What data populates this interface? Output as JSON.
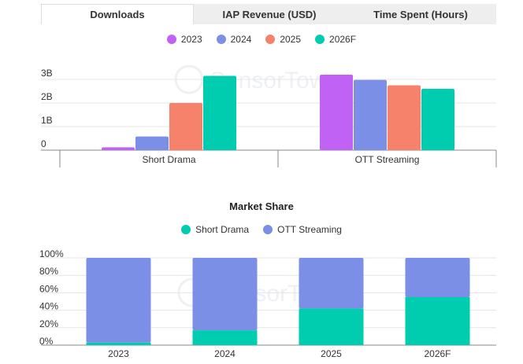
{
  "tabs": [
    {
      "label": "Downloads",
      "active": true
    },
    {
      "label": "IAP Revenue (USD)",
      "active": false
    },
    {
      "label": "Time Spent (Hours)",
      "active": false
    }
  ],
  "watermark": "SensorTower",
  "colors": {
    "2023": "#c063f5",
    "2024": "#7b8fe6",
    "2025": "#f6826c",
    "2026F": "#00cdb0",
    "short_drama": "#00cdb0",
    "ott_streaming": "#7b8fe6"
  },
  "chart_data": [
    {
      "type": "bar",
      "categories": [
        "Short Drama",
        "OTT Streaming"
      ],
      "series": [
        {
          "name": "2023",
          "values": [
            0.12,
            3.2
          ]
        },
        {
          "name": "2024",
          "values": [
            0.58,
            2.98
          ]
        },
        {
          "name": "2025",
          "values": [
            2.0,
            2.75
          ]
        },
        {
          "name": "2026F",
          "values": [
            3.15,
            2.6
          ]
        }
      ],
      "yticks": [
        {
          "value": 0,
          "label": "0"
        },
        {
          "value": 1,
          "label": "1B"
        },
        {
          "value": 2,
          "label": "2B"
        },
        {
          "value": 3,
          "label": "3B"
        }
      ],
      "ylim": [
        0,
        3.5
      ],
      "legend": "top-center",
      "grid": true
    },
    {
      "type": "bar",
      "stacked": true,
      "title": "Market Share",
      "categories": [
        "2023",
        "2024",
        "2025",
        "2026F"
      ],
      "series": [
        {
          "name": "Short Drama",
          "values": [
            3,
            17,
            42,
            55
          ]
        },
        {
          "name": "OTT Streaming",
          "values": [
            97,
            83,
            58,
            45
          ]
        }
      ],
      "yticks": [
        {
          "value": 0,
          "label": "0%"
        },
        {
          "value": 20,
          "label": "20%"
        },
        {
          "value": 40,
          "label": "40%"
        },
        {
          "value": 60,
          "label": "60%"
        },
        {
          "value": 80,
          "label": "80%"
        },
        {
          "value": 100,
          "label": "100%"
        }
      ],
      "ylim": [
        0,
        100
      ],
      "legend": "top-center",
      "grid": true
    }
  ]
}
